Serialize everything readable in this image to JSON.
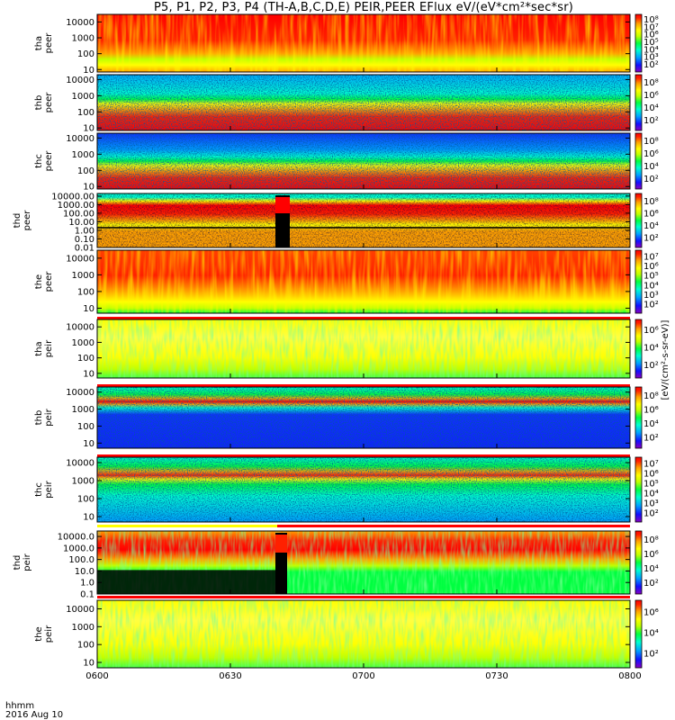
{
  "title": "P5, P1, P2, P3, P4 (TH-A,B,C,D,E) PEIR,PEER EFlux eV/(eV*cm²*sec*sr)",
  "colorbar_label": "[eV/(cm²-s-sr-eV)]",
  "footer": {
    "format": "hhmm",
    "date": "2016 Aug 10"
  },
  "chart_data": {
    "type": "heatmap",
    "x_axis": {
      "ticks": [
        "0600",
        "0630",
        "0700",
        "0730",
        "0800"
      ],
      "range": [
        "06:00",
        "08:00"
      ]
    },
    "panels": [
      {
        "id": "tha-peer",
        "ylabel": [
          "tha",
          "peer"
        ],
        "yticks": [
          "10",
          "100",
          "1000",
          "10000"
        ],
        "ylim": [
          7,
          30000
        ],
        "cbar_ticks": [
          "10²",
          "10³",
          "10⁴",
          "10⁵",
          "10⁶",
          "10⁷",
          "10⁸"
        ],
        "pattern": "high-flux"
      },
      {
        "id": "thb-peer",
        "ylabel": [
          "thb",
          "peer"
        ],
        "yticks": [
          "10",
          "100",
          "1000",
          "10000"
        ],
        "ylim": [
          7,
          20000
        ],
        "cbar_ticks": [
          "10²",
          "10⁴",
          "10⁶",
          "10⁸"
        ],
        "pattern": "noisy-top"
      },
      {
        "id": "thc-peer",
        "ylabel": [
          "thc",
          "peer"
        ],
        "yticks": [
          "10",
          "100",
          "1000",
          "10000"
        ],
        "ylim": [
          7,
          20000
        ],
        "cbar_ticks": [
          "10²",
          "10⁴",
          "10⁶",
          "10⁸"
        ],
        "pattern": "noisy-blue"
      },
      {
        "id": "thd-peer",
        "ylabel": [
          "thd",
          "peer"
        ],
        "yticks": [
          "0.01",
          "0.10",
          "1.00",
          "10.00",
          "100.00",
          "1000.00",
          "10000.00"
        ],
        "ylim": [
          0.01,
          20000
        ],
        "cbar_ticks": [
          "10²",
          "10⁴",
          "10⁶",
          "10⁸"
        ],
        "pattern": "thd-peer"
      },
      {
        "id": "the-peer",
        "ylabel": [
          "the",
          "peer"
        ],
        "yticks": [
          "10",
          "100",
          "1000",
          "10000"
        ],
        "ylim": [
          5,
          30000
        ],
        "cbar_ticks": [
          "10²",
          "10³",
          "10⁴",
          "10⁵",
          "10⁶",
          "10⁷"
        ],
        "pattern": "high-flux-2"
      },
      {
        "id": "tha-peir",
        "ylabel": [
          "tha",
          "peir"
        ],
        "yticks": [
          "10",
          "100",
          "1000",
          "10000"
        ],
        "ylim": [
          5,
          30000
        ],
        "cbar_ticks": [
          "10²",
          "10⁴",
          "10⁶"
        ],
        "pattern": "ion"
      },
      {
        "id": "thb-peir",
        "ylabel": [
          "thb",
          "peir"
        ],
        "yticks": [
          "10",
          "100",
          "1000",
          "10000"
        ],
        "ylim": [
          5,
          20000
        ],
        "cbar_ticks": [
          "10²",
          "10⁴",
          "10⁶",
          "10⁸"
        ],
        "pattern": "noisy-band"
      },
      {
        "id": "thc-peir",
        "ylabel": [
          "thc",
          "peir"
        ],
        "yticks": [
          "10",
          "100",
          "1000",
          "10000"
        ],
        "ylim": [
          5,
          20000
        ],
        "cbar_ticks": [
          "10²",
          "10³",
          "10⁴",
          "10⁵",
          "10⁶",
          "10⁷"
        ],
        "pattern": "noisy-band-2"
      },
      {
        "id": "thd-peir",
        "ylabel": [
          "thd",
          "peir"
        ],
        "yticks": [
          "0.1",
          "1.0",
          "10.0",
          "100.0",
          "1000.0",
          "10000.0"
        ],
        "ylim": [
          0.1,
          30000
        ],
        "cbar_ticks": [
          "10²",
          "10⁴",
          "10⁶",
          "10⁸"
        ],
        "pattern": "thd-peir"
      },
      {
        "id": "the-peir",
        "ylabel": [
          "the",
          "peir"
        ],
        "yticks": [
          "10",
          "100",
          "1000",
          "10000"
        ],
        "ylim": [
          5,
          30000
        ],
        "cbar_ticks": [
          "10²",
          "10⁴",
          "10⁶"
        ],
        "pattern": "ion"
      }
    ]
  },
  "colors": {
    "colormap": [
      "#8a00c0",
      "#1010ff",
      "#00a0ff",
      "#00ffd0",
      "#00ff40",
      "#c0ff00",
      "#ffff00",
      "#ffa000",
      "#ff2000",
      "#ff0000"
    ],
    "gap_bar": "#ff0000"
  }
}
